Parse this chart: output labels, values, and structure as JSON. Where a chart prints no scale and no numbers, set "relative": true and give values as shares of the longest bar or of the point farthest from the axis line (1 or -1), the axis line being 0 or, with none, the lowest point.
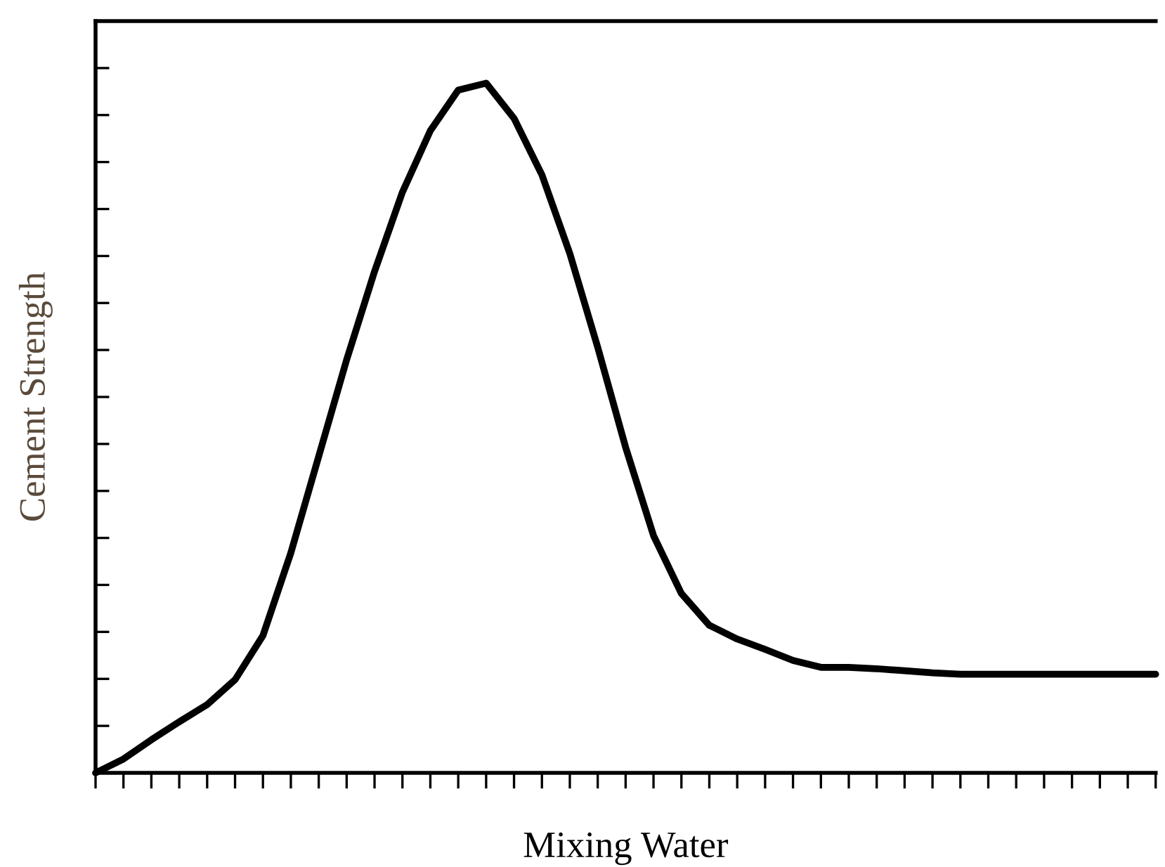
{
  "chart_data": {
    "type": "line",
    "xlabel": "Mixing Water",
    "ylabel": "Cement Strength",
    "relative": true,
    "tick_labels": false,
    "grid": false,
    "legend": false,
    "marker": "none",
    "line_style": "solid",
    "categories": [
      null,
      null,
      null,
      null,
      null,
      null,
      null,
      null,
      null,
      null,
      null,
      null,
      null,
      null,
      null,
      null,
      null,
      null,
      null,
      null,
      null,
      null,
      null,
      null,
      null,
      null,
      null,
      null,
      null,
      null,
      null,
      null,
      null,
      null,
      null,
      null,
      null,
      null,
      null
    ],
    "series": [
      {
        "color": "#000000",
        "values": [
          0,
          0.02,
          0.048,
          0.074,
          0.099,
          0.135,
          0.199,
          0.319,
          0.459,
          0.599,
          0.727,
          0.842,
          0.931,
          0.99,
          1,
          0.949,
          0.867,
          0.753,
          0.617,
          0.472,
          0.344,
          0.26,
          0.214,
          0.194,
          0.179,
          0.163,
          0.153,
          0.153,
          0.151,
          0.148,
          0.145,
          0.143,
          0.143,
          0.143,
          0.143,
          0.143,
          0.143,
          0.143,
          0.143
        ]
      }
    ]
  }
}
